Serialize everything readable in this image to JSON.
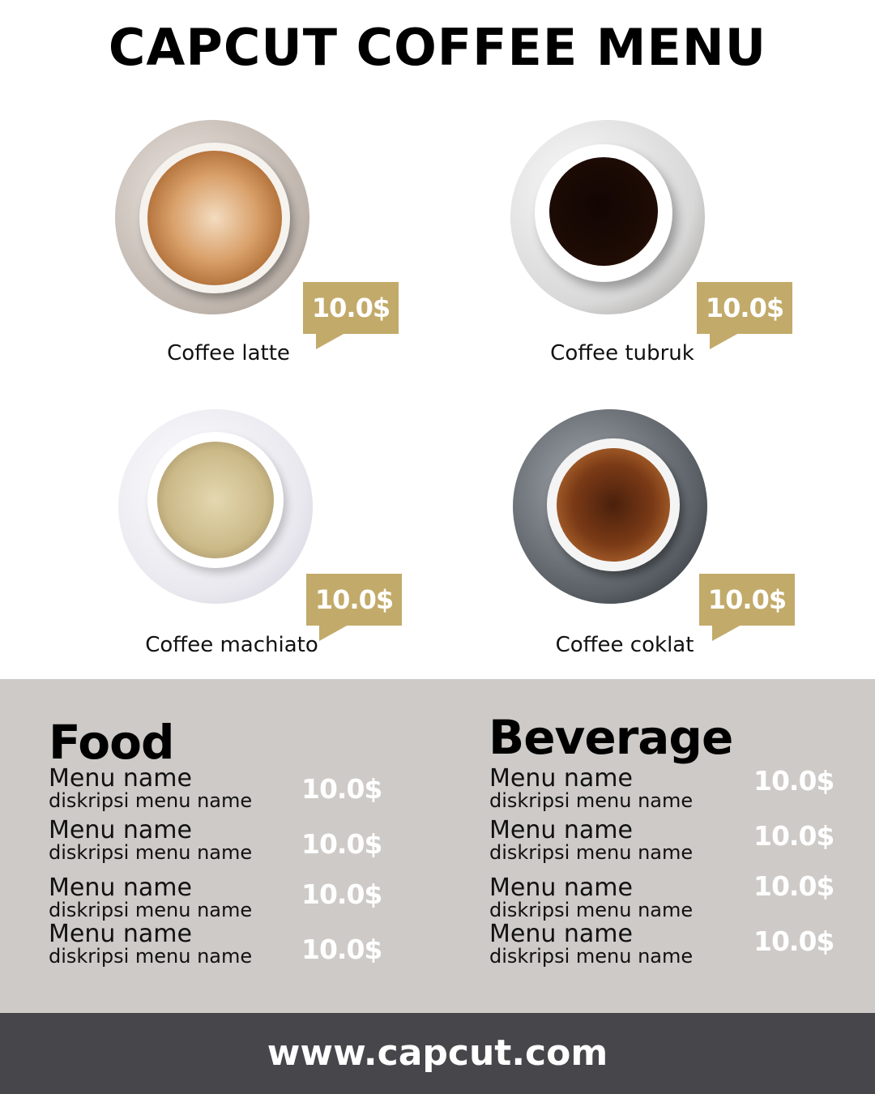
{
  "title": "CAPCUT COFFEE MENU",
  "coffees": [
    {
      "name": "Coffee latte",
      "price": "10.0$"
    },
    {
      "name": "Coffee tubruk",
      "price": "10.0$"
    },
    {
      "name": "Coffee machiato",
      "price": "10.0$"
    },
    {
      "name": "Coffee coklat",
      "price": "10.0$"
    }
  ],
  "colors": {
    "accent": "#c2aa6a",
    "section_bg": "#cdcac7",
    "footer_bg": "#47464b"
  },
  "food": {
    "title": "Food",
    "items": [
      {
        "name": "Menu name",
        "desc": "diskripsi menu name",
        "price": "10.0$"
      },
      {
        "name": "Menu name",
        "desc": "diskripsi menu name",
        "price": "10.0$"
      },
      {
        "name": "Menu name",
        "desc": "diskripsi menu name",
        "price": "10.0$"
      },
      {
        "name": "Menu name",
        "desc": "diskripsi menu name",
        "price": "10.0$"
      }
    ]
  },
  "beverage": {
    "title": "Beverage",
    "items": [
      {
        "name": "Menu name",
        "desc": "diskripsi menu name",
        "price": "10.0$"
      },
      {
        "name": "Menu name",
        "desc": "diskripsi menu name",
        "price": "10.0$"
      },
      {
        "name": "Menu name",
        "desc": "diskripsi menu name",
        "price": "10.0$"
      },
      {
        "name": "Menu name",
        "desc": "diskripsi menu name",
        "price": "10.0$"
      }
    ]
  },
  "footer": "www.capcut.com"
}
